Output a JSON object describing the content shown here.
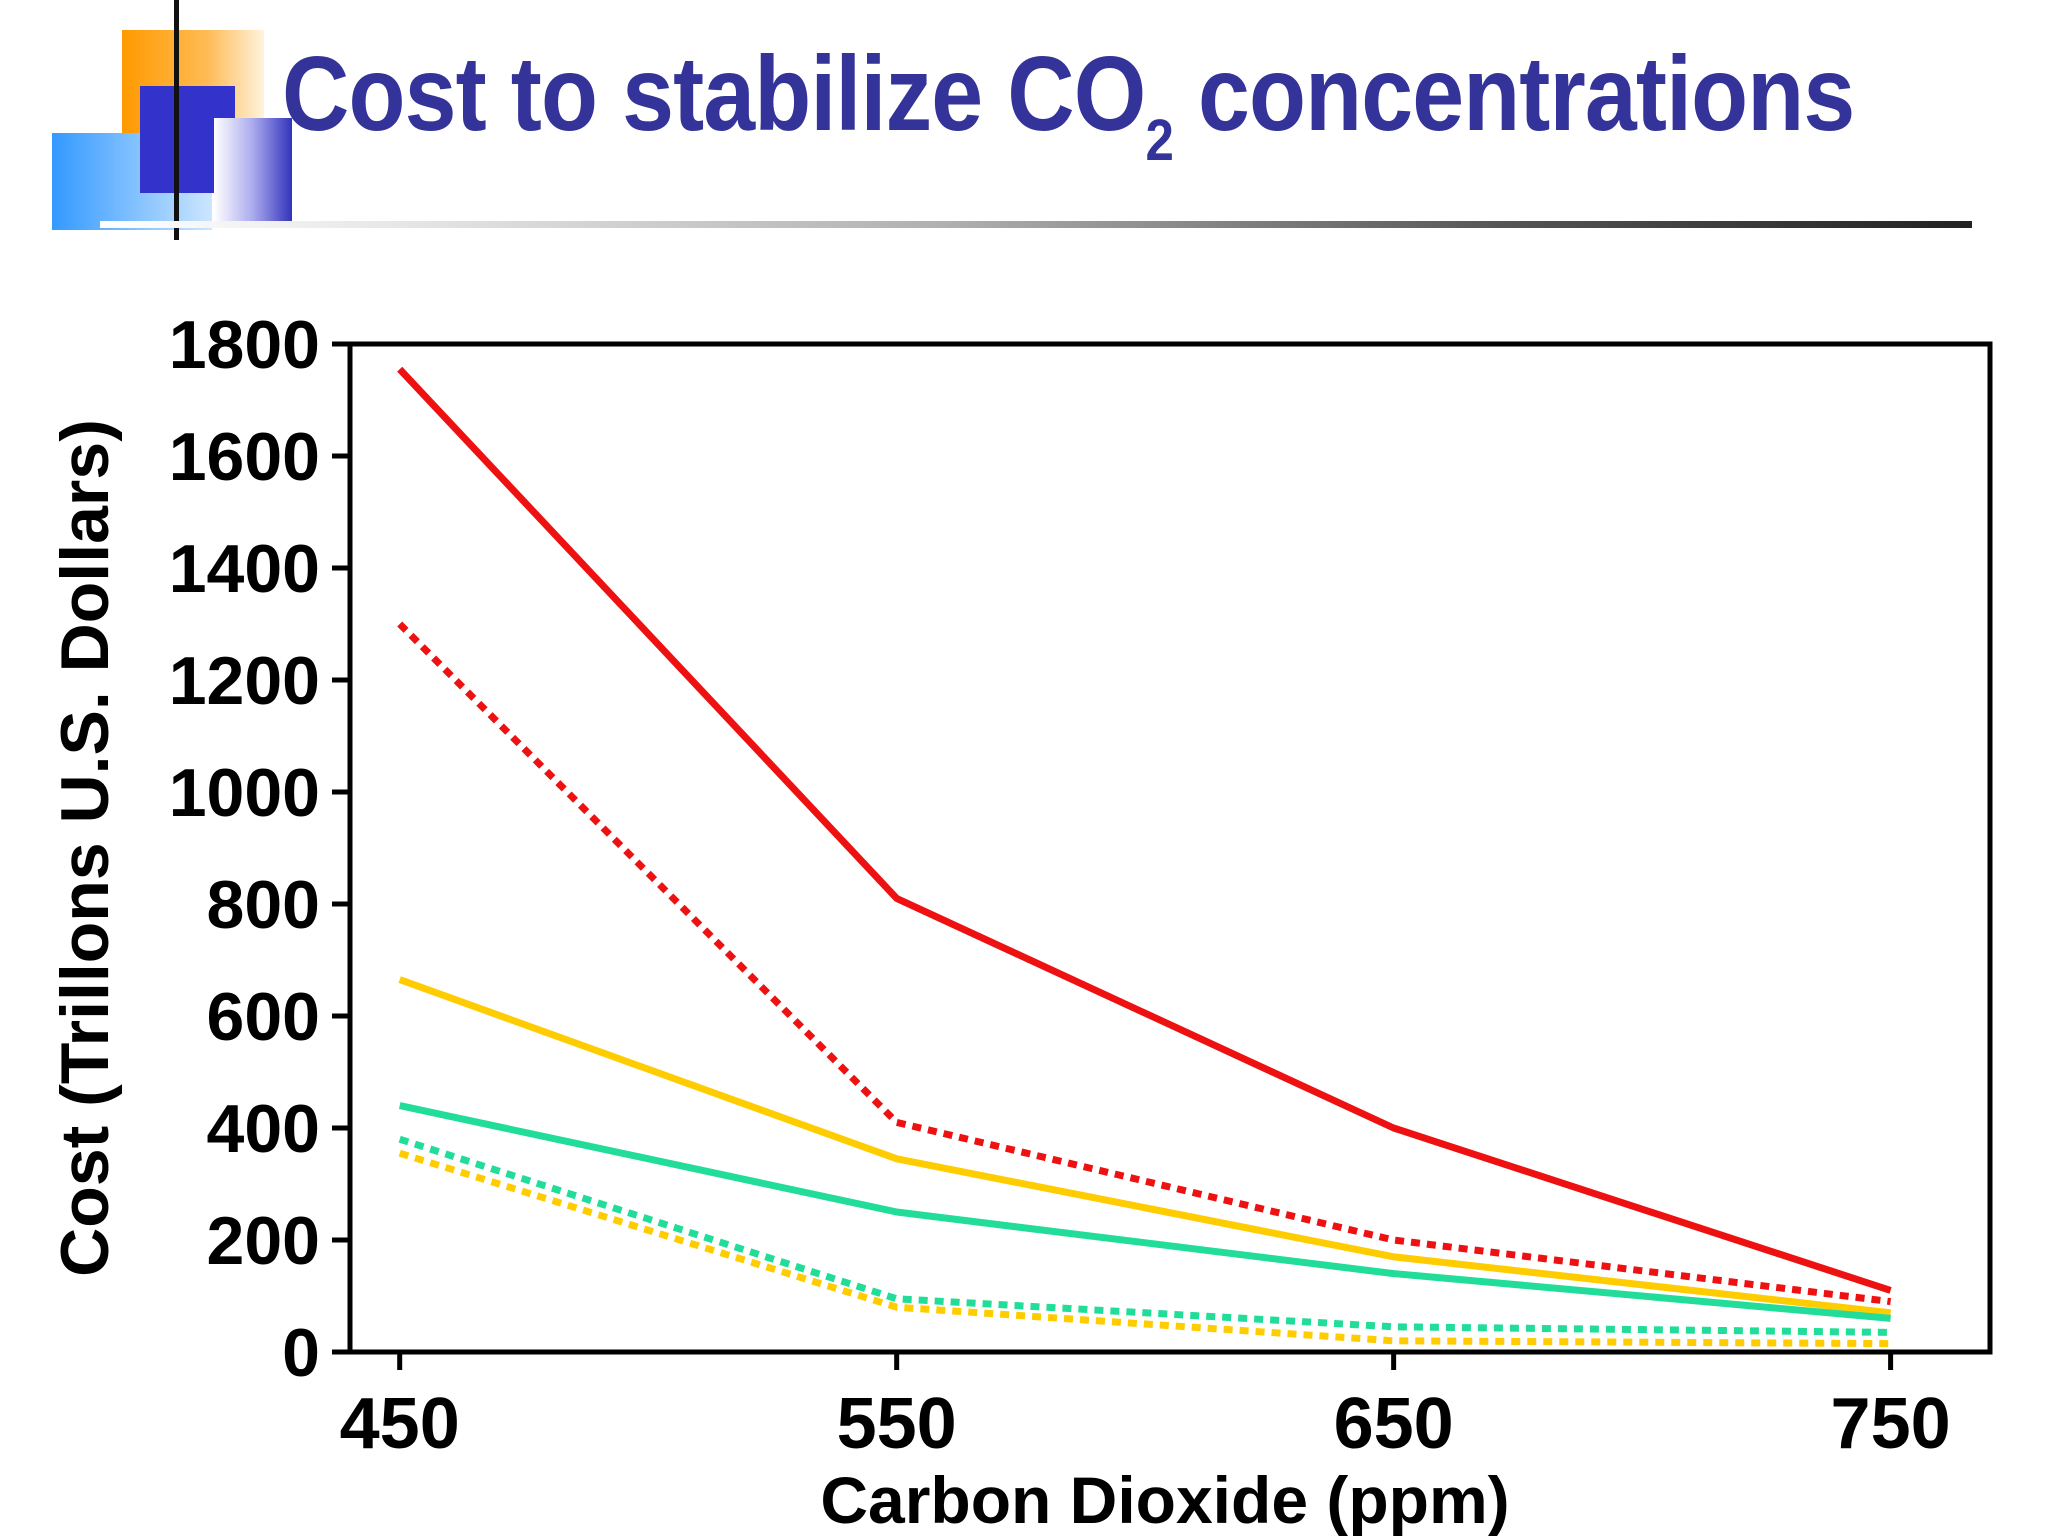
{
  "slide": {
    "title_main": "Cost to stabilize CO",
    "title_sub": "2",
    "title_rest": " concentrations",
    "title_color": "#333399"
  },
  "chart_data": {
    "type": "line",
    "xlabel": "Carbon Dioxide (ppm)",
    "ylabel": "Cost (Trillons U.S. Dollars)",
    "x": [
      450,
      550,
      650,
      750
    ],
    "xticks": [
      450,
      550,
      650,
      750
    ],
    "xlim": [
      440,
      770
    ],
    "ylim": [
      0,
      1800
    ],
    "yticks": [
      0,
      200,
      400,
      600,
      800,
      1000,
      1200,
      1400,
      1600,
      1800
    ],
    "grid": false,
    "legend": "none",
    "series": [
      {
        "color": "#ee1111",
        "dash": "solid",
        "values": [
          1755,
          810,
          400,
          110
        ]
      },
      {
        "color": "#ee1111",
        "dash": "dotted",
        "values": [
          1300,
          410,
          200,
          90
        ]
      },
      {
        "color": "#ffcc00",
        "dash": "solid",
        "values": [
          665,
          345,
          170,
          70
        ]
      },
      {
        "color": "#22dd99",
        "dash": "solid",
        "values": [
          440,
          250,
          140,
          60
        ]
      },
      {
        "color": "#22dd99",
        "dash": "dotted",
        "values": [
          380,
          95,
          45,
          35
        ]
      },
      {
        "color": "#ffcc00",
        "dash": "dotted",
        "values": [
          355,
          80,
          20,
          15
        ]
      }
    ]
  }
}
